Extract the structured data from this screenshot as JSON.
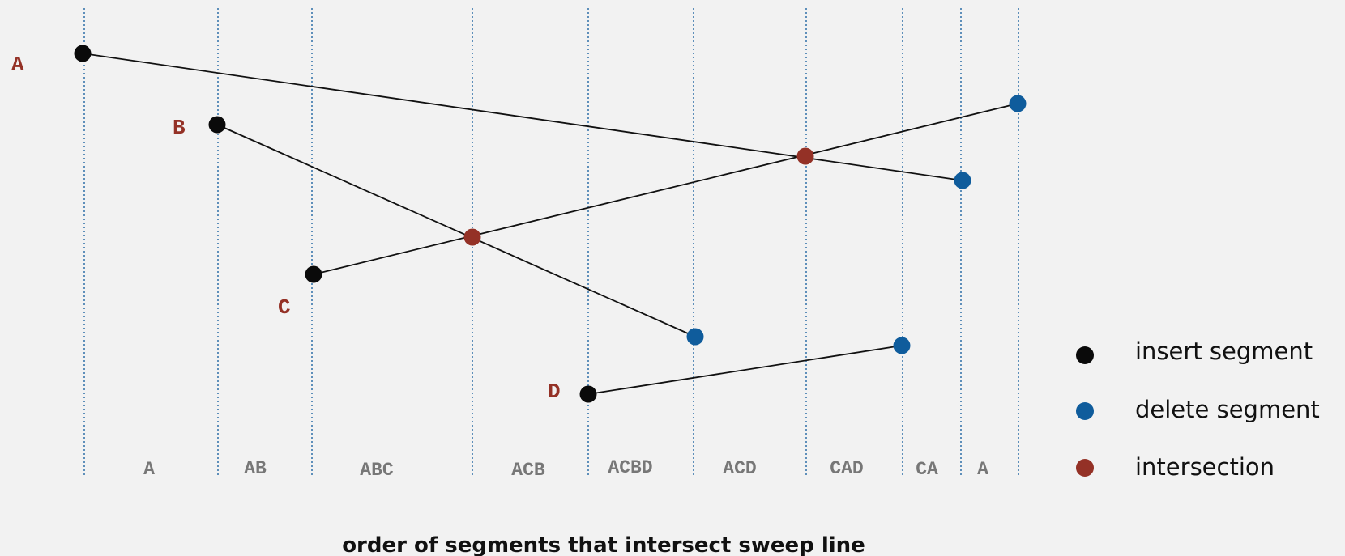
{
  "colors": {
    "insert": "#0a0a0a",
    "delete": "#0f5c9c",
    "intersection": "#943126",
    "sweep_line": "#2d6ea8"
  },
  "segments": [
    {
      "label": "A",
      "start": "insert",
      "end": "delete"
    },
    {
      "label": "B",
      "start": "insert",
      "end": "delete"
    },
    {
      "label": "C",
      "start": "insert",
      "end": "delete"
    },
    {
      "label": "D",
      "start": "insert",
      "end": "delete"
    }
  ],
  "orders": [
    "A",
    "AB",
    "ABC",
    "ACB",
    "ACBD",
    "ACD",
    "CAD",
    "CA",
    "A"
  ],
  "legend": [
    {
      "kind": "insert",
      "label": "insert segment"
    },
    {
      "kind": "delete",
      "label": "delete segment"
    },
    {
      "kind": "intersection",
      "label": "intersection"
    }
  ],
  "caption": "order of segments that intersect sweep line"
}
